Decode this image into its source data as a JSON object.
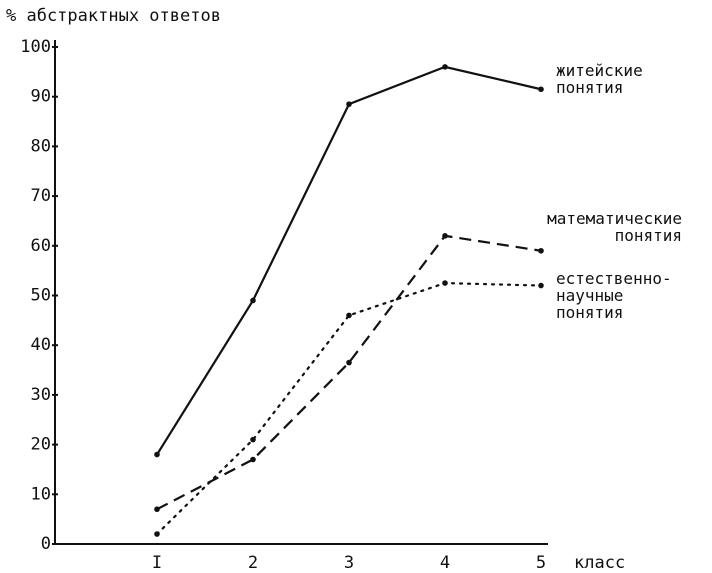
{
  "chart_data": {
    "type": "line",
    "y_label": "% абстрактных ответов",
    "x_label": "класс",
    "categories": [
      "I",
      "2",
      "3",
      "4",
      "5"
    ],
    "series": [
      {
        "name": "житейские понятия",
        "color": "#111111",
        "line_style": "solid",
        "values": [
          18,
          49,
          88.5,
          96,
          91.5
        ]
      },
      {
        "name": "математические понятия",
        "color": "#111111",
        "line_style": "dashed",
        "values": [
          7,
          17,
          36.5,
          62,
          59
        ]
      },
      {
        "name": "естественно-научные понятия",
        "color": "#111111",
        "line_style": "dotted",
        "values": [
          2,
          21,
          46,
          52.5,
          52
        ]
      }
    ],
    "ylim": [
      0,
      100
    ],
    "yticks": [
      0,
      10,
      20,
      30,
      40,
      50,
      60,
      70,
      80,
      90,
      100
    ],
    "grid": false
  }
}
